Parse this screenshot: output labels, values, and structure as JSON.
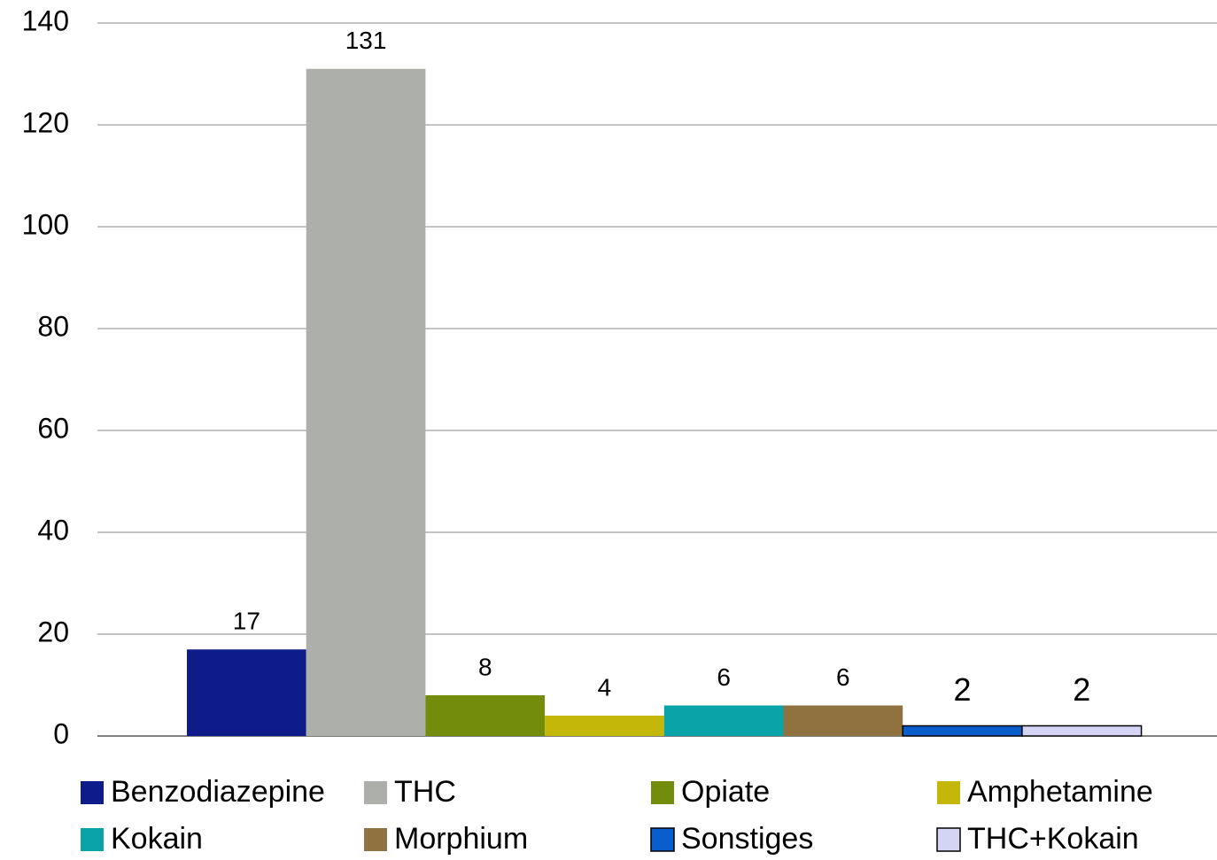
{
  "chart_data": {
    "type": "bar",
    "series": [
      {
        "name": "Benzodiazepine",
        "color": "#0e1c8a",
        "values": [
          17
        ]
      },
      {
        "name": "THC",
        "color": "#adafaa",
        "values": [
          131
        ]
      },
      {
        "name": "Opiate",
        "color": "#728c0c",
        "values": [
          8
        ]
      },
      {
        "name": "Amphetamine",
        "color": "#c4b70a",
        "values": [
          4
        ]
      },
      {
        "name": "Kokain",
        "color": "#0aa4a8",
        "values": [
          6
        ]
      },
      {
        "name": "Morphium",
        "color": "#8f723f",
        "values": [
          6
        ]
      },
      {
        "name": "Sonstiges",
        "color": "#0a5ecc",
        "values": [
          2
        ]
      },
      {
        "name": "THC+Kokain",
        "color": "#d4d4f5",
        "values": [
          2
        ]
      }
    ],
    "ylim": [
      0,
      140
    ],
    "yticks": [
      0,
      20,
      40,
      60,
      80,
      100,
      120,
      140
    ],
    "grid": true,
    "legend": "bottom"
  }
}
